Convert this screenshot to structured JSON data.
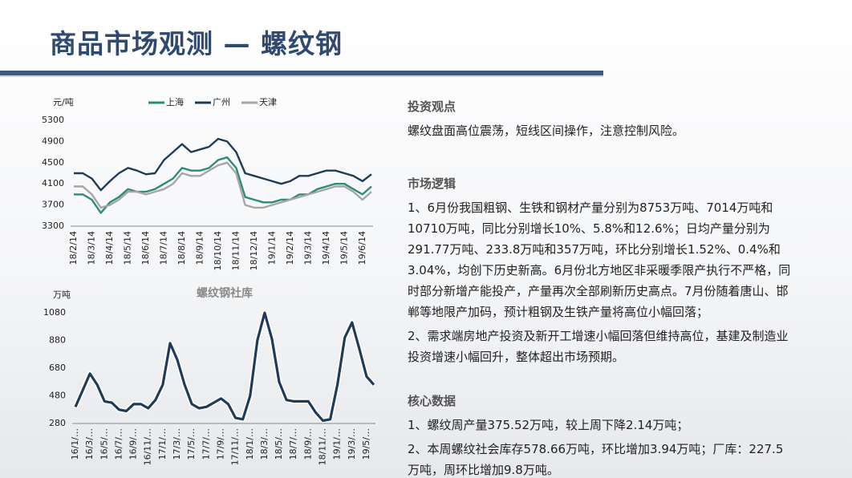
{
  "title": "商品市场观测 — 螺纹钢",
  "sections": [
    {
      "heading": "投资观点",
      "paragraphs": [
        "螺纹盘面高位震荡，短线区间操作，注意控制风险。"
      ]
    },
    {
      "heading": "市场逻辑",
      "paragraphs": [
        "1、6月份我国粗钢、生铁和钢材产量分别为8753万吨、7014万吨和10710万吨，同比分别增长10%、5.8%和12.6%；日均产量分别为291.77万吨、233.8万吨和357万吨，环比分别增长1.52%、0.4%和3.04%，均创下历史新高。6月份北方地区非采暖季限产执行不严格，同时部分新增产能投产，产量再次全部刷新历史高点。7月份随着唐山、邯郸等地限产加码，预计粗钢及生铁产量将高位小幅回落；",
        "2、需求端房地产投资及新开工增速小幅回落但维持高位，基建及制造业投资增速小幅回升，整体超出市场预期。"
      ]
    },
    {
      "heading": "核心数据",
      "paragraphs": [
        "1、螺纹周产量375.52万吨，较上周下降2.14万吨；",
        "2、本周螺纹社会库存578.66万吨，环比增加3.94万吨；厂库：227.5万吨，周环比增加9.8万吨。"
      ]
    }
  ],
  "chart_data": [
    {
      "type": "line",
      "y_label": "元/吨",
      "categories": [
        "18/2/14",
        null,
        "18/3/14",
        null,
        "18/4/14",
        null,
        "18/5/14",
        null,
        "18/6/14",
        null,
        "18/7/14",
        null,
        "18/8/14",
        null,
        "18/9/14",
        null,
        "18/10/14",
        null,
        "18/11/14",
        null,
        "18/12/14",
        null,
        "19/1/14",
        null,
        "19/2/14",
        null,
        "19/3/14",
        null,
        "19/4/14",
        null,
        "19/5/14",
        null,
        "19/6/14",
        null
      ],
      "series": [
        {
          "name": "上海",
          "color": "#2e8b74",
          "values": [
            3900,
            3900,
            3800,
            3550,
            3750,
            3850,
            4000,
            3950,
            3950,
            4000,
            4100,
            4200,
            4400,
            4350,
            4350,
            4400,
            4550,
            4600,
            4400,
            3850,
            3800,
            3750,
            3750,
            3800,
            3800,
            3900,
            3900,
            4000,
            4050,
            4100,
            4100,
            4000,
            3900,
            4050
          ]
        },
        {
          "name": "广州",
          "color": "#1f3b57",
          "values": [
            4300,
            4300,
            4200,
            3980,
            4150,
            4300,
            4400,
            4350,
            4280,
            4300,
            4550,
            4700,
            4850,
            4700,
            4750,
            4800,
            4950,
            4900,
            4700,
            4300,
            4250,
            4200,
            4150,
            4100,
            4150,
            4250,
            4250,
            4300,
            4350,
            4350,
            4300,
            4250,
            4150,
            4280
          ]
        },
        {
          "name": "天津",
          "color": "#a6a6a6",
          "values": [
            4050,
            4050,
            3900,
            3650,
            3700,
            3800,
            3950,
            3950,
            3900,
            3950,
            4000,
            4100,
            4300,
            4250,
            4250,
            4350,
            4450,
            4500,
            4300,
            3700,
            3650,
            3650,
            3700,
            3750,
            3800,
            3850,
            3900,
            3950,
            4000,
            4050,
            4050,
            3950,
            3800,
            3950
          ]
        }
      ],
      "ylim": [
        3300,
        5300
      ],
      "yticks": [
        3300,
        3700,
        4100,
        4500,
        4900,
        5300
      ],
      "legend": "top"
    },
    {
      "type": "line",
      "title": "螺纹钢社库",
      "y_label": "万吨",
      "color": "#1f3b57",
      "categories": [
        "16/1/…",
        null,
        "16/3/…",
        null,
        "16/5/…",
        null,
        "16/7/…",
        null,
        "16/9/…",
        null,
        "16/11/…",
        null,
        "17/1/…",
        null,
        "17/3/…",
        null,
        "17/5/…",
        null,
        "17/7/…",
        null,
        "17/9/…",
        null,
        "17/11/…",
        null,
        "18/1/…",
        null,
        "18/3/…",
        null,
        "18/5/…",
        null,
        "18/7/…",
        null,
        "18/9/…",
        null,
        "18/11/…",
        null,
        "19/1/…",
        null,
        "19/3/…",
        null,
        "19/5/…",
        null
      ],
      "values": [
        400,
        520,
        640,
        560,
        440,
        430,
        380,
        370,
        420,
        420,
        390,
        450,
        560,
        860,
        740,
        560,
        420,
        390,
        400,
        430,
        460,
        420,
        320,
        310,
        480,
        880,
        1080,
        890,
        580,
        450,
        440,
        440,
        440,
        360,
        300,
        310,
        560,
        900,
        1010,
        820,
        620,
        560
      ],
      "ylim": [
        280,
        1080
      ],
      "yticks": [
        280,
        480,
        680,
        880,
        1080
      ]
    }
  ]
}
